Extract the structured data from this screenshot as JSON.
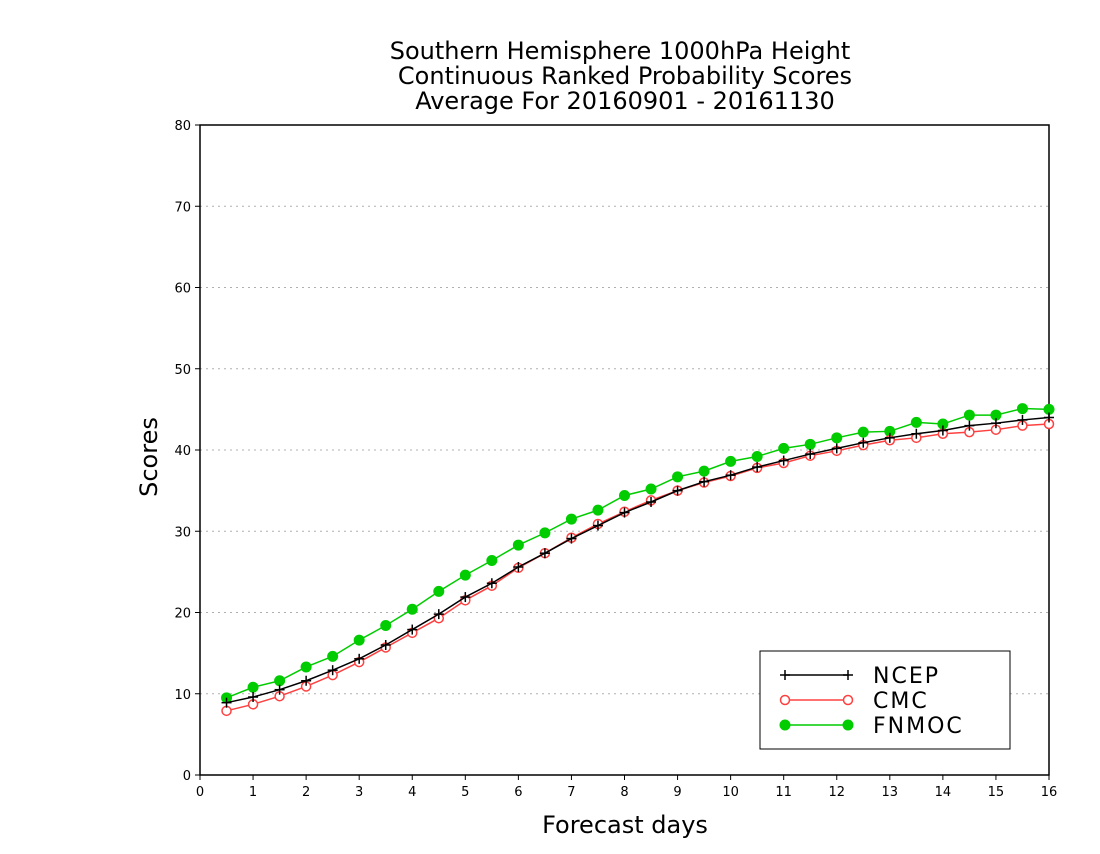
{
  "chart_data": {
    "type": "line",
    "title": [
      "Southern Hemisphere 1000hPa Height",
      "Continuous Ranked Probability Scores",
      "Average For 20160901 - 20161130"
    ],
    "xlabel": "Forecast days",
    "ylabel": "Scores",
    "xlim": [
      0,
      16
    ],
    "ylim": [
      0,
      80
    ],
    "xticks": [
      0,
      1,
      2,
      3,
      4,
      5,
      6,
      7,
      8,
      9,
      10,
      11,
      12,
      13,
      14,
      15,
      16
    ],
    "yticks": [
      0,
      10,
      20,
      30,
      40,
      50,
      60,
      70,
      80
    ],
    "grid": "horizontal-dotted",
    "legend_position": "bottom-right",
    "x": [
      0.5,
      1,
      1.5,
      2,
      2.5,
      3,
      3.5,
      4,
      4.5,
      5,
      5.5,
      6,
      6.5,
      7,
      7.5,
      8,
      8.5,
      9,
      9.5,
      10,
      10.5,
      11,
      11.5,
      12,
      12.5,
      13,
      13.5,
      14,
      14.5,
      15,
      15.5,
      16
    ],
    "series": [
      {
        "name": "NCEP",
        "color": "#000000",
        "marker": "plus",
        "values": [
          8.9,
          9.6,
          10.5,
          11.6,
          12.9,
          14.3,
          16.0,
          17.9,
          19.8,
          21.9,
          23.6,
          25.6,
          27.3,
          29.1,
          30.7,
          32.3,
          33.6,
          35.0,
          36.1,
          36.9,
          37.9,
          38.7,
          39.5,
          40.2,
          40.9,
          41.5,
          42.0,
          42.4,
          43.0,
          43.3,
          43.7,
          44.0
        ]
      },
      {
        "name": "CMC",
        "color": "#ff4040",
        "marker": "open-circle",
        "values": [
          7.9,
          8.7,
          9.7,
          10.9,
          12.3,
          13.9,
          15.7,
          17.5,
          19.3,
          21.5,
          23.3,
          25.5,
          27.3,
          29.2,
          30.9,
          32.4,
          33.8,
          35.0,
          36.0,
          36.8,
          37.8,
          38.4,
          39.3,
          39.9,
          40.6,
          41.2,
          41.5,
          42.0,
          42.2,
          42.5,
          43.0,
          43.2
        ]
      },
      {
        "name": "FNMOC",
        "color": "#00cc00",
        "marker": "filled-circle",
        "values": [
          9.5,
          10.8,
          11.6,
          13.3,
          14.6,
          16.6,
          18.4,
          20.4,
          22.6,
          24.6,
          26.4,
          28.3,
          29.8,
          31.5,
          32.6,
          34.4,
          35.2,
          36.7,
          37.4,
          38.6,
          39.2,
          40.2,
          40.7,
          41.5,
          42.2,
          42.3,
          43.4,
          43.2,
          44.3,
          44.3,
          45.1,
          45.0
        ]
      }
    ]
  }
}
